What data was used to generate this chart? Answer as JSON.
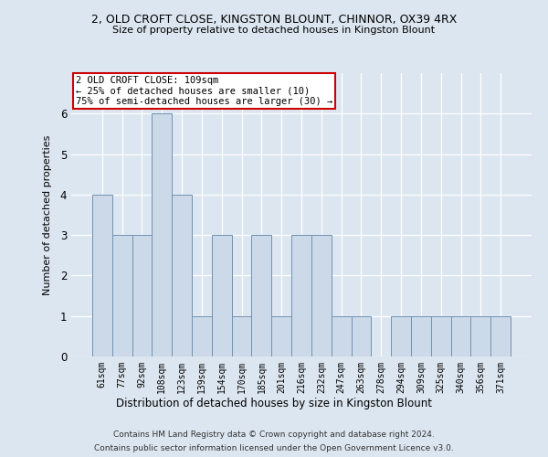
{
  "title_line1": "2, OLD CROFT CLOSE, KINGSTON BLOUNT, CHINNOR, OX39 4RX",
  "title_line2": "Size of property relative to detached houses in Kingston Blount",
  "xlabel": "Distribution of detached houses by size in Kingston Blount",
  "ylabel": "Number of detached properties",
  "categories": [
    "61sqm",
    "77sqm",
    "92sqm",
    "108sqm",
    "123sqm",
    "139sqm",
    "154sqm",
    "170sqm",
    "185sqm",
    "201sqm",
    "216sqm",
    "232sqm",
    "247sqm",
    "263sqm",
    "278sqm",
    "294sqm",
    "309sqm",
    "325sqm",
    "340sqm",
    "356sqm",
    "371sqm"
  ],
  "values": [
    4,
    3,
    3,
    6,
    4,
    1,
    3,
    1,
    3,
    1,
    3,
    3,
    1,
    1,
    0,
    1,
    1,
    1,
    1,
    1,
    1
  ],
  "highlight_index": 3,
  "bar_color": "#ccd9e8",
  "bar_edge_color": "#7092b4",
  "bg_color": "#dce6f0",
  "annotation_text": "2 OLD CROFT CLOSE: 109sqm\n← 25% of detached houses are smaller (10)\n75% of semi-detached houses are larger (30) →",
  "annotation_box_color": "white",
  "annotation_box_edge": "#cc0000",
  "footer_line1": "Contains HM Land Registry data © Crown copyright and database right 2024.",
  "footer_line2": "Contains public sector information licensed under the Open Government Licence v3.0.",
  "ylim": [
    0,
    7
  ],
  "yticks": [
    0,
    1,
    2,
    3,
    4,
    5,
    6
  ]
}
